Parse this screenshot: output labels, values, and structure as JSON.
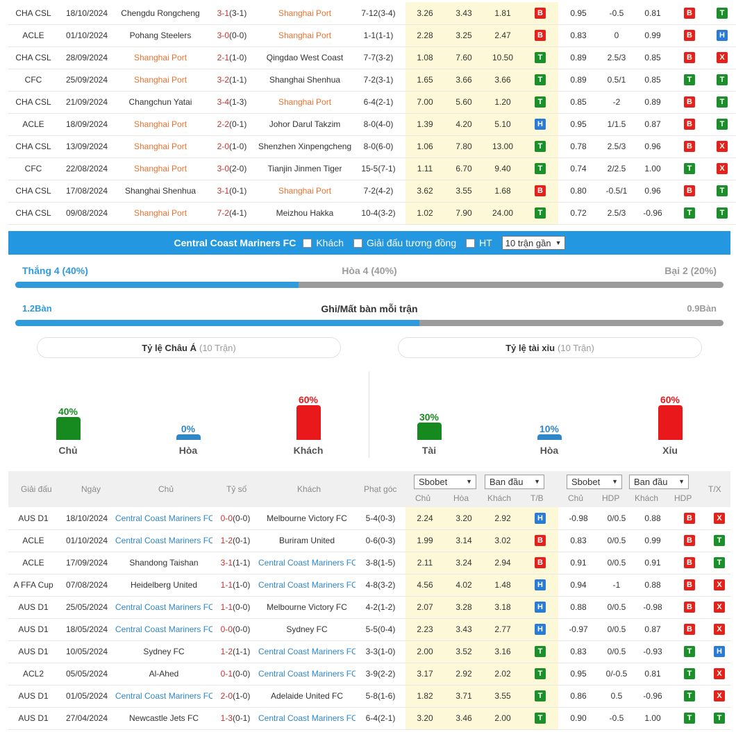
{
  "top_matches": [
    {
      "league": "CHA CSL",
      "date": "18/10/2024",
      "home": "Chengdu Rongcheng",
      "home_hl": false,
      "score_ft": "3-1",
      "score_ht": "(3-1)",
      "away": "Shanghai Port",
      "away_hl": true,
      "corner": "7-12(3-4)",
      "o1": "3.26",
      "o2": "3.43",
      "o3": "1.81",
      "r1": "B",
      "h1": "0.95",
      "h2": "-0.5",
      "h3": "0.81",
      "r2": "B",
      "r3": "T"
    },
    {
      "league": "ACLE",
      "date": "01/10/2024",
      "home": "Pohang Steelers",
      "home_hl": false,
      "score_ft": "3-0",
      "score_ht": "(0-0)",
      "away": "Shanghai Port",
      "away_hl": true,
      "corner": "1-1(1-1)",
      "o1": "2.28",
      "o2": "3.25",
      "o3": "2.47",
      "r1": "B",
      "h1": "0.83",
      "h2": "0",
      "h3": "0.99",
      "r2": "B",
      "r3": "H"
    },
    {
      "league": "CHA CSL",
      "date": "28/09/2024",
      "home": "Shanghai Port",
      "home_hl": true,
      "score_ft": "2-1",
      "score_ht": "(1-0)",
      "away": "Qingdao West Coast",
      "away_hl": false,
      "corner": "7-7(3-2)",
      "o1": "1.08",
      "o2": "7.60",
      "o3": "10.50",
      "r1": "T",
      "h1": "0.89",
      "h2": "2.5/3",
      "h3": "0.85",
      "r2": "B",
      "r3": "X"
    },
    {
      "league": "CFC",
      "date": "25/09/2024",
      "home": "Shanghai Port",
      "home_hl": true,
      "score_ft": "3-2",
      "score_ht": "(1-1)",
      "away": "Shanghai Shenhua",
      "away_hl": false,
      "corner": "7-2(3-1)",
      "o1": "1.65",
      "o2": "3.66",
      "o3": "3.66",
      "r1": "T",
      "h1": "0.89",
      "h2": "0.5/1",
      "h3": "0.85",
      "r2": "T",
      "r3": "T"
    },
    {
      "league": "CHA CSL",
      "date": "21/09/2024",
      "home": "Changchun Yatai",
      "home_hl": false,
      "score_ft": "3-4",
      "score_ht": "(1-3)",
      "away": "Shanghai Port",
      "away_hl": true,
      "corner": "6-4(2-1)",
      "o1": "7.00",
      "o2": "5.60",
      "o3": "1.20",
      "r1": "T",
      "h1": "0.85",
      "h2": "-2",
      "h3": "0.89",
      "r2": "B",
      "r3": "T"
    },
    {
      "league": "ACLE",
      "date": "18/09/2024",
      "home": "Shanghai Port",
      "home_hl": true,
      "score_ft": "2-2",
      "score_ht": "(0-1)",
      "away": "Johor Darul Takzim",
      "away_hl": false,
      "corner": "8-0(4-0)",
      "o1": "1.39",
      "o2": "4.20",
      "o3": "5.10",
      "r1": "H",
      "h1": "0.95",
      "h2": "1/1.5",
      "h3": "0.87",
      "r2": "B",
      "r3": "T"
    },
    {
      "league": "CHA CSL",
      "date": "13/09/2024",
      "home": "Shanghai Port",
      "home_hl": true,
      "score_ft": "2-0",
      "score_ht": "(1-0)",
      "away": "Shenzhen Xinpengcheng",
      "away_hl": false,
      "corner": "8-0(6-0)",
      "o1": "1.06",
      "o2": "7.80",
      "o3": "13.00",
      "r1": "T",
      "h1": "0.78",
      "h2": "2.5/3",
      "h3": "0.96",
      "r2": "B",
      "r3": "X"
    },
    {
      "league": "CFC",
      "date": "22/08/2024",
      "home": "Shanghai Port",
      "home_hl": true,
      "score_ft": "3-0",
      "score_ht": "(2-0)",
      "away": "Tianjin Jinmen Tiger",
      "away_hl": false,
      "corner": "15-5(7-1)",
      "o1": "1.11",
      "o2": "6.70",
      "o3": "9.40",
      "r1": "T",
      "h1": "0.74",
      "h2": "2/2.5",
      "h3": "1.00",
      "r2": "T",
      "r3": "X"
    },
    {
      "league": "CHA CSL",
      "date": "17/08/2024",
      "home": "Shanghai Shenhua",
      "home_hl": false,
      "score_ft": "3-1",
      "score_ht": "(0-1)",
      "away": "Shanghai Port",
      "away_hl": true,
      "corner": "7-2(4-2)",
      "o1": "3.62",
      "o2": "3.55",
      "o3": "1.68",
      "r1": "B",
      "h1": "0.80",
      "h2": "-0.5/1",
      "h3": "0.96",
      "r2": "B",
      "r3": "T"
    },
    {
      "league": "CHA CSL",
      "date": "09/08/2024",
      "home": "Shanghai Port",
      "home_hl": true,
      "score_ft": "7-2",
      "score_ht": "(4-1)",
      "away": "Meizhou Hakka",
      "away_hl": false,
      "corner": "10-4(3-2)",
      "o1": "1.02",
      "o2": "7.90",
      "o3": "24.00",
      "r1": "T",
      "h1": "0.72",
      "h2": "2.5/3",
      "h3": "-0.96",
      "r2": "T",
      "r3": "T"
    }
  ],
  "team_bar": {
    "team_name": "Central Coast Mariners FC",
    "opt_away": "Khách",
    "opt_same_league": "Giải đấu tương đồng",
    "opt_ht": "HT",
    "select_value": "10 trận gần"
  },
  "wdl": {
    "win": "Thắng 4 (40%)",
    "draw": "Hòa 4 (40%)",
    "loss": "Bại 2 (20%)",
    "win_fraction": 0.4
  },
  "goals": {
    "left": "1.2Bàn",
    "center": "Ghi/Mất bàn mỗi trận",
    "right": "0.9Bàn",
    "left_fraction": 0.571
  },
  "panels": {
    "asian": {
      "title": "Tỷ lệ Châu Á",
      "count": "(10 Trận)"
    },
    "ou": {
      "title": "Tỷ lệ tài xỉu",
      "count": "(10 Trận)"
    }
  },
  "bars": [
    {
      "pct": "40%",
      "label": "Chủ",
      "value": 40,
      "color": "#178a1f"
    },
    {
      "pct": "0%",
      "label": "Hòa",
      "value": 0,
      "color": "#2f86c8"
    },
    {
      "pct": "60%",
      "label": "Khách",
      "value": 60,
      "color": "#e8181b"
    },
    {
      "pct": "30%",
      "label": "Tài",
      "value": 30,
      "color": "#178a1f"
    },
    {
      "pct": "10%",
      "label": "Hòa",
      "value": 10,
      "color": "#2f86c8"
    },
    {
      "pct": "60%",
      "label": "Xỉu",
      "value": 60,
      "color": "#e8181b"
    }
  ],
  "table_header": {
    "league": "Giải đấu",
    "date": "Ngày",
    "home": "Chủ",
    "score": "Tỷ số",
    "away": "Khách",
    "corner": "Phạt góc",
    "book1": "Sbobet",
    "type1": "Ban đầu",
    "book2": "Sbobet",
    "type2": "Ban đầu",
    "c_home": "Chủ",
    "c_draw": "Hòa",
    "c_away": "Khách",
    "c_tb": "T/B",
    "c_home2": "Chủ",
    "c_hdp": "HDP",
    "c_away2": "Khách",
    "c_hdp2": "HDP",
    "c_tx": "T/X"
  },
  "bottom_matches": [
    {
      "league": "AUS D1",
      "date": "18/10/2024",
      "home": "Central Coast Mariners FC",
      "home_hl": true,
      "score_ft": "0-0",
      "score_ht": "(0-0)",
      "away": "Melbourne Victory FC",
      "away_hl": false,
      "corner": "5-4(0-3)",
      "o1": "2.24",
      "o2": "3.20",
      "o3": "2.92",
      "r1": "H",
      "h1": "-0.98",
      "h2": "0/0.5",
      "h3": "0.88",
      "r2": "B",
      "r3": "X"
    },
    {
      "league": "ACLE",
      "date": "01/10/2024",
      "home": "Central Coast Mariners FC",
      "home_hl": true,
      "score_ft": "1-2",
      "score_ht": "(0-1)",
      "away": "Buriram United",
      "away_hl": false,
      "corner": "0-6(0-3)",
      "o1": "1.99",
      "o2": "3.14",
      "o3": "3.02",
      "r1": "B",
      "h1": "0.83",
      "h2": "0/0.5",
      "h3": "0.99",
      "r2": "B",
      "r3": "T"
    },
    {
      "league": "ACLE",
      "date": "17/09/2024",
      "home": "Shandong Taishan",
      "home_hl": false,
      "score_ft": "3-1",
      "score_ht": "(1-1)",
      "away": "Central Coast Mariners FC",
      "away_hl": true,
      "corner": "3-8(1-5)",
      "o1": "2.11",
      "o2": "3.24",
      "o3": "2.94",
      "r1": "B",
      "h1": "0.91",
      "h2": "0/0.5",
      "h3": "0.91",
      "r2": "B",
      "r3": "T"
    },
    {
      "league": "A FFA Cup",
      "date": "07/08/2024",
      "home": "Heidelberg United",
      "home_hl": false,
      "score_ft": "1-1",
      "score_ht": "(1-0)",
      "away": "Central Coast Mariners FC",
      "away_hl": true,
      "corner": "4-8(3-2)",
      "o1": "4.56",
      "o2": "4.02",
      "o3": "1.48",
      "r1": "H",
      "h1": "0.94",
      "h2": "-1",
      "h3": "0.88",
      "r2": "B",
      "r3": "X"
    },
    {
      "league": "AUS D1",
      "date": "25/05/2024",
      "home": "Central Coast Mariners FC",
      "home_hl": true,
      "score_ft": "1-1",
      "score_ht": "(0-0)",
      "away": "Melbourne Victory FC",
      "away_hl": false,
      "corner": "4-2(1-2)",
      "o1": "2.07",
      "o2": "3.28",
      "o3": "3.18",
      "r1": "H",
      "h1": "0.88",
      "h2": "0/0.5",
      "h3": "-0.98",
      "r2": "B",
      "r3": "X"
    },
    {
      "league": "AUS D1",
      "date": "18/05/2024",
      "home": "Central Coast Mariners FC",
      "home_hl": true,
      "score_ft": "0-0",
      "score_ht": "(0-0)",
      "away": "Sydney FC",
      "away_hl": false,
      "corner": "5-5(0-4)",
      "o1": "2.23",
      "o2": "3.43",
      "o3": "2.77",
      "r1": "H",
      "h1": "-0.97",
      "h2": "0/0.5",
      "h3": "0.87",
      "r2": "B",
      "r3": "X"
    },
    {
      "league": "AUS D1",
      "date": "10/05/2024",
      "home": "Sydney FC",
      "home_hl": false,
      "score_ft": "1-2",
      "score_ht": "(1-1)",
      "away": "Central Coast Mariners FC",
      "away_hl": true,
      "corner": "3-3(1-0)",
      "o1": "2.00",
      "o2": "3.52",
      "o3": "3.16",
      "r1": "T",
      "h1": "0.83",
      "h2": "0/0.5",
      "h3": "-0.93",
      "r2": "T",
      "r3": "H"
    },
    {
      "league": "ACL2",
      "date": "05/05/2024",
      "home": "Al-Ahed",
      "home_hl": false,
      "score_ft": "0-1",
      "score_ht": "(0-0)",
      "away": "Central Coast Mariners FC",
      "away_hl": true,
      "corner": "3-9(2-2)",
      "o1": "3.17",
      "o2": "2.92",
      "o3": "2.02",
      "r1": "T",
      "h1": "0.95",
      "h2": "0/-0.5",
      "h3": "0.81",
      "r2": "T",
      "r3": "X"
    },
    {
      "league": "AUS D1",
      "date": "01/05/2024",
      "home": "Central Coast Mariners FC",
      "home_hl": true,
      "score_ft": "2-0",
      "score_ht": "(1-0)",
      "away": "Adelaide United FC",
      "away_hl": false,
      "corner": "5-8(1-6)",
      "o1": "1.82",
      "o2": "3.71",
      "o3": "3.55",
      "r1": "T",
      "h1": "0.86",
      "h2": "0.5",
      "h3": "-0.96",
      "r2": "T",
      "r3": "X"
    },
    {
      "league": "AUS D1",
      "date": "27/04/2024",
      "home": "Newcastle Jets FC",
      "home_hl": false,
      "score_ft": "1-3",
      "score_ht": "(0-1)",
      "away": "Central Coast Mariners FC",
      "away_hl": true,
      "corner": "6-4(2-1)",
      "o1": "3.20",
      "o2": "3.46",
      "o3": "2.00",
      "r1": "T",
      "h1": "0.90",
      "h2": "-0.5",
      "h3": "1.00",
      "r2": "T",
      "r3": "T"
    }
  ]
}
